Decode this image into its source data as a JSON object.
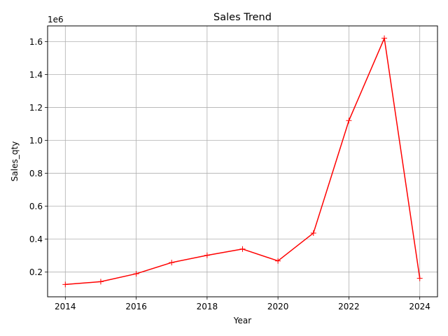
{
  "chart_data": {
    "type": "line",
    "title": "Sales Trend",
    "xlabel": "Year",
    "ylabel": "Sales_qty",
    "y_offset_label": "1e6",
    "x": [
      2014,
      2015,
      2016,
      2017,
      2018,
      2019,
      2020,
      2021,
      2022,
      2023,
      2024
    ],
    "series": [
      {
        "values": [
          125000,
          142000,
          190000,
          258000,
          302000,
          340000,
          268000,
          437000,
          1120000,
          1620000,
          162000
        ],
        "color": "#ff0000",
        "marker": "plus"
      }
    ],
    "xticks": [
      2014,
      2016,
      2018,
      2020,
      2022,
      2024
    ],
    "xtick_labels": [
      "2014",
      "2016",
      "2018",
      "2020",
      "2022",
      "2024"
    ],
    "yticks": [
      200000,
      400000,
      600000,
      800000,
      1000000,
      1200000,
      1400000,
      1600000
    ],
    "ytick_labels": [
      "0.2",
      "0.4",
      "0.6",
      "0.8",
      "1.0",
      "1.2",
      "1.4",
      "1.6"
    ],
    "xlim": [
      2013.5,
      2024.5
    ],
    "ylim": [
      50000,
      1695000
    ],
    "grid": true,
    "grid_color": "#b0b0b0",
    "axis_color": "#000000"
  }
}
